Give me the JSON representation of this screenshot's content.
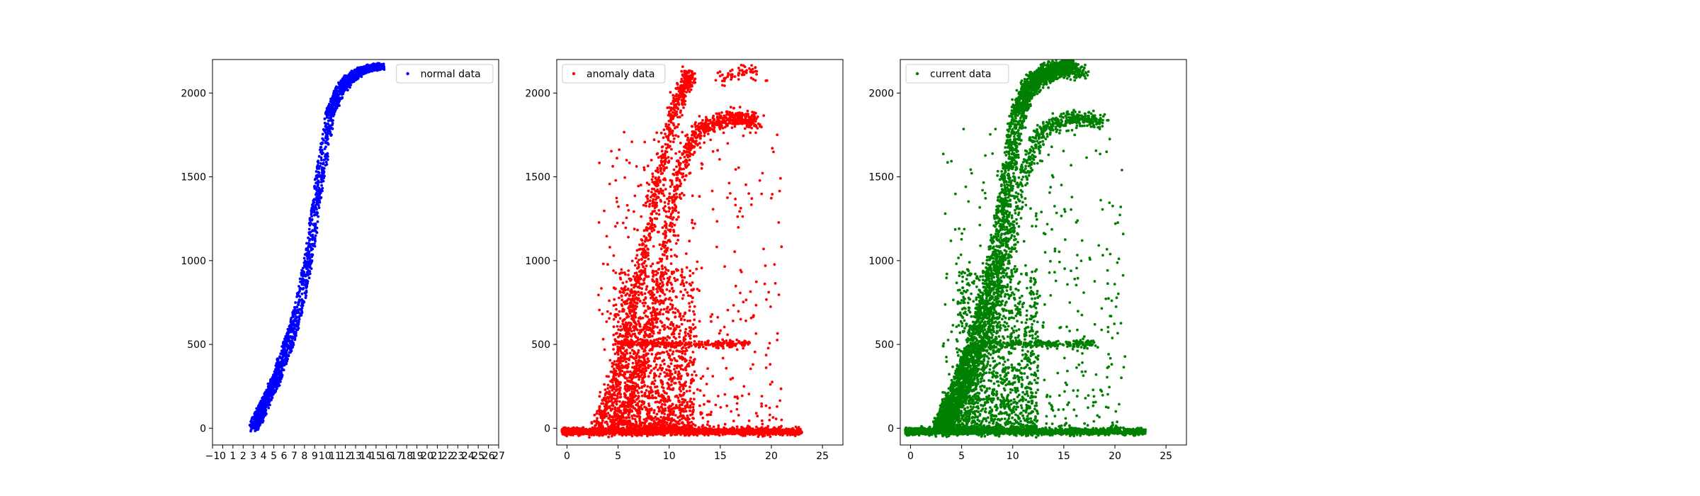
{
  "chart_data": [
    {
      "type": "scatter",
      "title": "",
      "xlabel": "",
      "ylabel": "",
      "xlim": [
        -1,
        27
      ],
      "ylim": [
        -100,
        2200
      ],
      "xticks": [
        -1,
        0,
        1,
        2,
        3,
        4,
        5,
        6,
        7,
        8,
        9,
        10,
        11,
        12,
        13,
        14,
        15,
        16,
        17,
        18,
        19,
        20,
        21,
        22,
        23,
        24,
        25,
        26,
        27
      ],
      "yticks": [
        0,
        500,
        1000,
        1500,
        2000
      ],
      "legend": "top-right",
      "grid": false,
      "series": [
        {
          "name": "normal data",
          "color": "#0000ff",
          "shape": "band",
          "band_x": [
            3.0,
            3.5,
            4.0,
            4.8,
            5.5,
            6.5,
            7.5,
            8.5,
            9.5,
            10.5,
            11.5,
            12.5,
            13.5,
            14.5,
            15.5
          ],
          "band_y": [
            0,
            60,
            130,
            230,
            340,
            520,
            730,
            1050,
            1480,
            1880,
            2020,
            2090,
            2130,
            2150,
            2160
          ],
          "band_width": [
            0.9,
            1.0,
            1.0,
            1.0,
            1.0,
            1.0,
            0.9,
            0.9,
            0.9,
            0.9,
            1.0,
            1.1,
            1.0,
            1.0,
            0.8
          ],
          "band_y_spread": 40,
          "point_count": 2200
        }
      ]
    },
    {
      "type": "scatter",
      "title": "",
      "xlabel": "",
      "ylabel": "",
      "xlim": [
        -1,
        27
      ],
      "ylim": [
        -100,
        2200
      ],
      "xticks": [
        0,
        5,
        10,
        15,
        20,
        25
      ],
      "yticks": [
        0,
        500,
        1000,
        1500,
        2000
      ],
      "legend": "top-left",
      "grid": false,
      "series": [
        {
          "name": "anomaly data",
          "color": "#ff0000",
          "baseline": {
            "x_range": [
              -0.5,
              23
            ],
            "y": -20,
            "y_spread": 10,
            "point_count": 2000
          },
          "curves": [
            {
              "x": [
                3.0,
                4.5,
                6.0,
                7.5,
                9.0,
                10.5,
                11.5,
                12.0
              ],
              "y": [
                0,
                250,
                600,
                1050,
                1500,
                1880,
                2050,
                2110
              ],
              "spread": 0.35,
              "point_count": 900
            },
            {
              "x": [
                4.5,
                6.0,
                7.5,
                9.0,
                10.0,
                11.0,
                12.0,
                13.0,
                14.5,
                16.0,
                17.5,
                18.5
              ],
              "y": [
                0,
                150,
                450,
                850,
                1200,
                1500,
                1680,
                1780,
                1830,
                1850,
                1840,
                1830
              ],
              "spread": 0.4,
              "point_count": 900
            },
            {
              "x": [
                6.0,
                10.0,
                14.0,
                18.0
              ],
              "y": [
                510,
                505,
                500,
                505
              ],
              "spread": 10,
              "point_count": 220
            },
            {
              "x": [
                15.0,
                17.0,
                19.0
              ],
              "y": [
                2080,
                2140,
                2120
              ],
              "spread": 25,
              "point_count": 60
            }
          ],
          "cloud": [
            {
              "x_range": [
                4.5,
                12.5
              ],
              "y_range": [
                0,
                950
              ],
              "point_count": 1300
            },
            {
              "x_range": [
                3.0,
                21.0
              ],
              "y_range": [
                0,
                1800
              ],
              "point_count": 450
            }
          ]
        }
      ]
    },
    {
      "type": "scatter",
      "title": "",
      "xlabel": "",
      "ylabel": "",
      "xlim": [
        -1,
        27
      ],
      "ylim": [
        -100,
        2200
      ],
      "xticks": [
        0,
        5,
        10,
        15,
        20,
        25
      ],
      "yticks": [
        0,
        500,
        1000,
        1500,
        2000
      ],
      "legend": "top-left",
      "grid": false,
      "series": [
        {
          "name": "current data",
          "color": "#008000",
          "baseline": {
            "x_range": [
              -0.5,
              23
            ],
            "y": -20,
            "y_spread": 10,
            "point_count": 2000
          },
          "band": {
            "x": [
              3.0,
              3.5,
              4.0,
              4.8,
              5.5,
              6.5,
              7.5,
              8.5,
              9.5,
              10.5,
              11.5,
              12.5,
              13.5,
              14.5,
              15.5
            ],
            "y": [
              0,
              60,
              130,
              230,
              340,
              520,
              730,
              1050,
              1480,
              1880,
              2020,
              2090,
              2130,
              2150,
              2160
            ],
            "width": [
              1.6,
              1.8,
              1.9,
              2.0,
              2.0,
              2.0,
              1.8,
              1.6,
              1.5,
              1.5,
              1.6,
              1.8,
              1.8,
              1.6,
              1.4
            ],
            "point_count": 3500
          },
          "curves": [
            {
              "x": [
                4.5,
                6.0,
                7.5,
                9.0,
                10.0,
                11.0,
                12.0,
                13.0,
                14.5,
                16.0,
                17.5,
                18.5
              ],
              "y": [
                0,
                150,
                450,
                850,
                1200,
                1500,
                1680,
                1780,
                1830,
                1850,
                1840,
                1830
              ],
              "spread": 0.4,
              "point_count": 700
            },
            {
              "x": [
                6.0,
                10.0,
                14.0,
                18.0
              ],
              "y": [
                510,
                505,
                500,
                505
              ],
              "spread": 10,
              "point_count": 220
            },
            {
              "x": [
                13.0,
                15.0,
                17.0
              ],
              "y": [
                2080,
                2140,
                2130
              ],
              "spread": 25,
              "point_count": 180
            }
          ],
          "cloud": [
            {
              "x_range": [
                4.5,
                12.5
              ],
              "y_range": [
                0,
                950
              ],
              "point_count": 1100
            },
            {
              "x_range": [
                3.0,
                21.0
              ],
              "y_range": [
                0,
                1800
              ],
              "point_count": 450
            }
          ]
        }
      ]
    }
  ]
}
